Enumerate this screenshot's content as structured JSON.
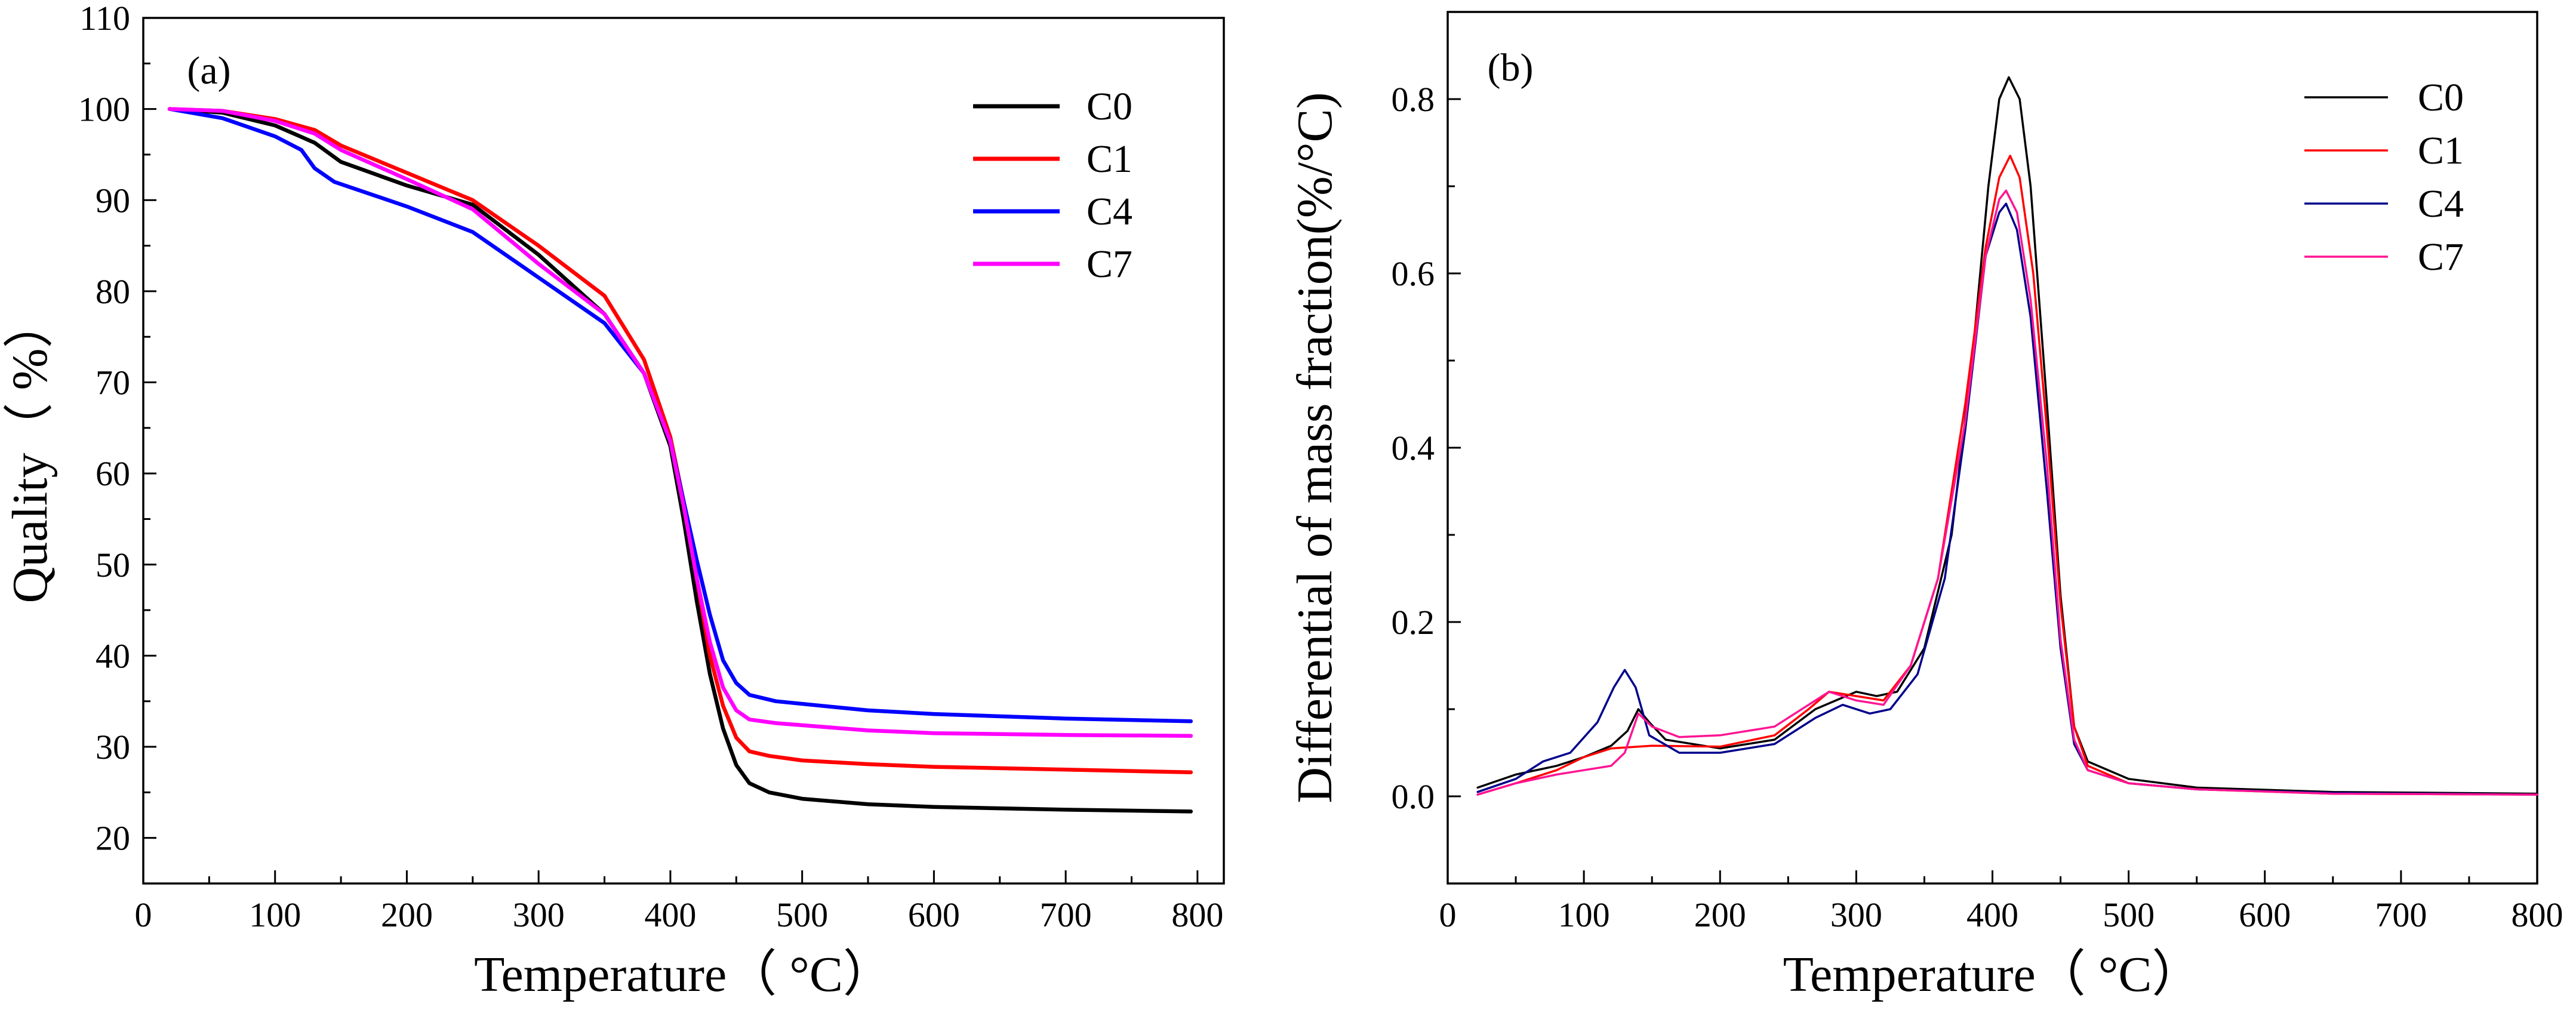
{
  "chart_data": [
    {
      "type": "line",
      "panel_label": "(a)",
      "xlabel": "Temperature（ °C）",
      "ylabel": "Quality（ %）",
      "xlim": [
        0,
        820
      ],
      "ylim": [
        15,
        110
      ],
      "xticks": [
        0,
        100,
        200,
        300,
        400,
        500,
        600,
        700,
        800
      ],
      "yticks": [
        20,
        30,
        40,
        50,
        60,
        70,
        80,
        90,
        100,
        110
      ],
      "legend_position": "top-right",
      "series": [
        {
          "name": "C0",
          "color": "#000000",
          "points": [
            [
              20,
              100
            ],
            [
              60,
              99.6
            ],
            [
              100,
              98.2
            ],
            [
              130,
              96.3
            ],
            [
              150,
              94.2
            ],
            [
              200,
              91.6
            ],
            [
              250,
              89.5
            ],
            [
              300,
              84
            ],
            [
              350,
              77.5
            ],
            [
              380,
              71
            ],
            [
              400,
              63
            ],
            [
              410,
              55
            ],
            [
              420,
              46
            ],
            [
              430,
              38
            ],
            [
              440,
              32
            ],
            [
              450,
              28
            ],
            [
              460,
              26
            ],
            [
              475,
              25
            ],
            [
              500,
              24.3
            ],
            [
              550,
              23.7
            ],
            [
              600,
              23.4
            ],
            [
              700,
              23.1
            ],
            [
              795,
              22.9
            ]
          ]
        },
        {
          "name": "C1",
          "color": "#ff0000",
          "points": [
            [
              20,
              100
            ],
            [
              60,
              99.8
            ],
            [
              100,
              98.9
            ],
            [
              130,
              97.7
            ],
            [
              150,
              96
            ],
            [
              200,
              93
            ],
            [
              250,
              90
            ],
            [
              300,
              85
            ],
            [
              350,
              79.5
            ],
            [
              380,
              72.5
            ],
            [
              400,
              64
            ],
            [
              410,
              57
            ],
            [
              420,
              48.5
            ],
            [
              430,
              40
            ],
            [
              440,
              34.5
            ],
            [
              450,
              31
            ],
            [
              460,
              29.5
            ],
            [
              475,
              29
            ],
            [
              500,
              28.5
            ],
            [
              550,
              28.1
            ],
            [
              600,
              27.8
            ],
            [
              700,
              27.5
            ],
            [
              795,
              27.2
            ]
          ]
        },
        {
          "name": "C4",
          "color": "#0000ff",
          "points": [
            [
              20,
              100
            ],
            [
              60,
              99
            ],
            [
              100,
              97
            ],
            [
              120,
              95.5
            ],
            [
              130,
              93.5
            ],
            [
              145,
              92
            ],
            [
              200,
              89.3
            ],
            [
              250,
              86.5
            ],
            [
              300,
              81.5
            ],
            [
              350,
              76.5
            ],
            [
              380,
              71
            ],
            [
              400,
              63.5
            ],
            [
              410,
              57
            ],
            [
              420,
              50.5
            ],
            [
              430,
              44.5
            ],
            [
              440,
              39.5
            ],
            [
              450,
              37
            ],
            [
              460,
              35.7
            ],
            [
              480,
              35
            ],
            [
              550,
              34
            ],
            [
              600,
              33.6
            ],
            [
              700,
              33.1
            ],
            [
              795,
              32.8
            ]
          ]
        },
        {
          "name": "C7",
          "color": "#ff00ff",
          "points": [
            [
              20,
              100
            ],
            [
              60,
              99.8
            ],
            [
              100,
              98.7
            ],
            [
              130,
              97.3
            ],
            [
              150,
              95.5
            ],
            [
              200,
              92.3
            ],
            [
              250,
              89
            ],
            [
              300,
              83
            ],
            [
              350,
              77.5
            ],
            [
              380,
              71
            ],
            [
              400,
              63.5
            ],
            [
              410,
              56.5
            ],
            [
              420,
              48.5
            ],
            [
              430,
              41.5
            ],
            [
              440,
              36.5
            ],
            [
              450,
              34
            ],
            [
              460,
              33
            ],
            [
              480,
              32.6
            ],
            [
              550,
              31.8
            ],
            [
              600,
              31.5
            ],
            [
              700,
              31.3
            ],
            [
              795,
              31.2
            ]
          ]
        }
      ]
    },
    {
      "type": "line",
      "panel_label": "(b)",
      "xlabel": "Temperature（ °C）",
      "ylabel": "Differential of mass fraction(%/°C)",
      "xlim": [
        0,
        800
      ],
      "ylim": [
        -0.1,
        0.9
      ],
      "xticks": [
        0,
        100,
        200,
        300,
        400,
        500,
        600,
        700,
        800
      ],
      "yticks": [
        "0.0",
        "0.2",
        "0.4",
        "0.6",
        "0.8"
      ],
      "legend_position": "top-right",
      "series": [
        {
          "name": "C0",
          "color": "#000000",
          "points": [
            [
              22,
              0.01
            ],
            [
              50,
              0.025
            ],
            [
              80,
              0.035
            ],
            [
              100,
              0.045
            ],
            [
              120,
              0.058
            ],
            [
              132,
              0.075
            ],
            [
              140,
              0.1
            ],
            [
              148,
              0.085
            ],
            [
              160,
              0.065
            ],
            [
              200,
              0.055
            ],
            [
              240,
              0.065
            ],
            [
              270,
              0.1
            ],
            [
              285,
              0.11
            ],
            [
              300,
              0.12
            ],
            [
              315,
              0.115
            ],
            [
              330,
              0.12
            ],
            [
              350,
              0.17
            ],
            [
              370,
              0.3
            ],
            [
              385,
              0.5
            ],
            [
              397,
              0.7
            ],
            [
              405,
              0.8
            ],
            [
              412,
              0.825
            ],
            [
              420,
              0.8
            ],
            [
              428,
              0.7
            ],
            [
              440,
              0.45
            ],
            [
              450,
              0.23
            ],
            [
              460,
              0.08
            ],
            [
              470,
              0.04
            ],
            [
              500,
              0.02
            ],
            [
              550,
              0.01
            ],
            [
              650,
              0.005
            ],
            [
              800,
              0.003
            ]
          ]
        },
        {
          "name": "C1",
          "color": "#ff0000",
          "points": [
            [
              22,
              0.002
            ],
            [
              50,
              0.015
            ],
            [
              80,
              0.03
            ],
            [
              100,
              0.045
            ],
            [
              120,
              0.055
            ],
            [
              150,
              0.058
            ],
            [
              200,
              0.057
            ],
            [
              240,
              0.07
            ],
            [
              265,
              0.1
            ],
            [
              280,
              0.12
            ],
            [
              300,
              0.115
            ],
            [
              320,
              0.11
            ],
            [
              340,
              0.15
            ],
            [
              360,
              0.25
            ],
            [
              380,
              0.45
            ],
            [
              395,
              0.63
            ],
            [
              405,
              0.71
            ],
            [
              413,
              0.735
            ],
            [
              420,
              0.71
            ],
            [
              430,
              0.6
            ],
            [
              440,
              0.42
            ],
            [
              450,
              0.22
            ],
            [
              460,
              0.08
            ],
            [
              470,
              0.035
            ],
            [
              500,
              0.015
            ],
            [
              550,
              0.008
            ],
            [
              650,
              0.003
            ],
            [
              800,
              0.002
            ]
          ]
        },
        {
          "name": "C4",
          "color": "#00008b",
          "points": [
            [
              22,
              0.005
            ],
            [
              50,
              0.02
            ],
            [
              70,
              0.04
            ],
            [
              90,
              0.05
            ],
            [
              110,
              0.085
            ],
            [
              122,
              0.125
            ],
            [
              130,
              0.145
            ],
            [
              138,
              0.125
            ],
            [
              148,
              0.07
            ],
            [
              170,
              0.05
            ],
            [
              200,
              0.05
            ],
            [
              240,
              0.06
            ],
            [
              270,
              0.09
            ],
            [
              290,
              0.105
            ],
            [
              310,
              0.095
            ],
            [
              325,
              0.1
            ],
            [
              345,
              0.14
            ],
            [
              365,
              0.25
            ],
            [
              380,
              0.42
            ],
            [
              395,
              0.62
            ],
            [
              405,
              0.67
            ],
            [
              410,
              0.68
            ],
            [
              418,
              0.65
            ],
            [
              428,
              0.55
            ],
            [
              440,
              0.35
            ],
            [
              450,
              0.17
            ],
            [
              460,
              0.06
            ],
            [
              470,
              0.03
            ],
            [
              500,
              0.015
            ],
            [
              550,
              0.008
            ],
            [
              650,
              0.004
            ],
            [
              800,
              0.002
            ]
          ]
        },
        {
          "name": "C7",
          "color": "#ff1493",
          "points": [
            [
              22,
              0.002
            ],
            [
              50,
              0.015
            ],
            [
              80,
              0.025
            ],
            [
              100,
              0.03
            ],
            [
              120,
              0.035
            ],
            [
              130,
              0.05
            ],
            [
              140,
              0.095
            ],
            [
              150,
              0.08
            ],
            [
              170,
              0.068
            ],
            [
              200,
              0.07
            ],
            [
              240,
              0.08
            ],
            [
              265,
              0.105
            ],
            [
              280,
              0.12
            ],
            [
              300,
              0.11
            ],
            [
              320,
              0.105
            ],
            [
              340,
              0.15
            ],
            [
              360,
              0.25
            ],
            [
              380,
              0.43
            ],
            [
              395,
              0.62
            ],
            [
              405,
              0.685
            ],
            [
              410,
              0.695
            ],
            [
              418,
              0.67
            ],
            [
              428,
              0.57
            ],
            [
              440,
              0.38
            ],
            [
              450,
              0.18
            ],
            [
              460,
              0.065
            ],
            [
              470,
              0.03
            ],
            [
              500,
              0.015
            ],
            [
              550,
              0.008
            ],
            [
              650,
              0.003
            ],
            [
              800,
              0.002
            ]
          ]
        }
      ]
    }
  ]
}
